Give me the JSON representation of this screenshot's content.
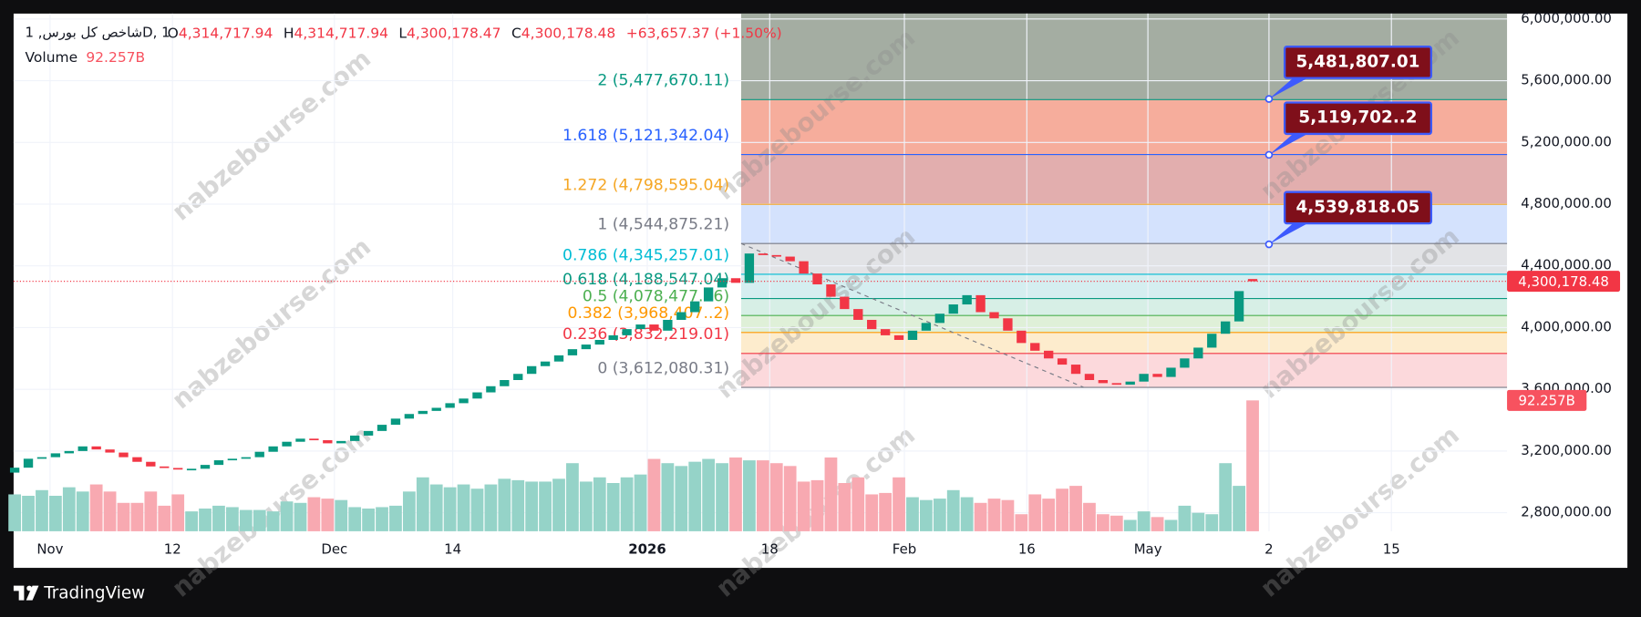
{
  "chart_data": {
    "type": "candlestick",
    "legend": {
      "symbol": "شاخص کل بورس, 1D, 1",
      "ohlc": [
        {
          "key": "O",
          "value": "4,314,717.94"
        },
        {
          "key": "H",
          "value": "4,314,717.94"
        },
        {
          "key": "L",
          "value": "4,300,178.47"
        },
        {
          "key": "C",
          "value": "4,300,178.48"
        }
      ],
      "change": "+63,657.37 (+1.50%)",
      "volume_title": "Volume",
      "volume_value": "92.257B"
    },
    "open": [
      3060000,
      3092000,
      3150000,
      3160000,
      3185000,
      3200000,
      3230000,
      3210000,
      3190000,
      3160000,
      3130000,
      3100000,
      3090000,
      3080000,
      3085000,
      3110000,
      3140000,
      3150000,
      3160000,
      3195000,
      3230000,
      3260000,
      3280000,
      3270000,
      3250000,
      3265000,
      3300000,
      3330000,
      3370000,
      3410000,
      3440000,
      3460000,
      3480000,
      3510000,
      3540000,
      3580000,
      3620000,
      3660000,
      3700000,
      3750000,
      3780000,
      3820000,
      3860000,
      3890000,
      3920000,
      3950000,
      3990000,
      4020000,
      3980000,
      4050000,
      4100000,
      4170000,
      4260000,
      4320000,
      4290000,
      4480000,
      4470000,
      4460000,
      4430000,
      4350000,
      4280000,
      4200000,
      4120000,
      4050000,
      3990000,
      3950000,
      3920000,
      3980000,
      4030000,
      4090000,
      4150000,
      4210000,
      4100000,
      4060000,
      3980000,
      3900000,
      3850000,
      3800000,
      3760000,
      3700000,
      3660000,
      3640000,
      3630000,
      3650000,
      3700000,
      3680000,
      3740000,
      3800000,
      3870000,
      3960000,
      4040000,
      4314717.94
    ],
    "close": [
      3092000,
      3150000,
      3160000,
      3185000,
      3200000,
      3230000,
      3210000,
      3190000,
      3160000,
      3130000,
      3100000,
      3090000,
      3080000,
      3085000,
      3110000,
      3140000,
      3150000,
      3160000,
      3195000,
      3230000,
      3260000,
      3280000,
      3270000,
      3250000,
      3265000,
      3300000,
      3330000,
      3370000,
      3410000,
      3440000,
      3460000,
      3480000,
      3510000,
      3540000,
      3580000,
      3620000,
      3660000,
      3700000,
      3750000,
      3780000,
      3820000,
      3860000,
      3890000,
      3920000,
      3950000,
      3990000,
      4020000,
      3980000,
      4050000,
      4100000,
      4170000,
      4260000,
      4320000,
      4290000,
      4480000,
      4470000,
      4460000,
      4430000,
      4350000,
      4280000,
      4200000,
      4120000,
      4050000,
      3990000,
      3950000,
      3920000,
      3980000,
      4030000,
      4090000,
      4150000,
      4210000,
      4100000,
      4060000,
      3980000,
      3900000,
      3850000,
      3800000,
      3760000,
      3700000,
      3660000,
      3640000,
      3630000,
      3650000,
      3700000,
      3680000,
      3740000,
      3800000,
      3870000,
      3960000,
      4040000,
      4236521.11,
      4300178.48
    ],
    "volume": {
      "axis": "y2",
      "values": [
        26,
        25,
        29,
        25,
        31,
        28,
        33,
        28,
        20,
        20,
        28,
        18,
        26,
        14,
        16,
        18,
        17,
        15,
        15,
        14,
        21,
        20,
        24,
        23,
        22,
        17,
        16,
        17,
        18,
        28,
        38,
        33,
        31,
        33,
        30,
        33,
        37,
        36,
        35,
        35,
        37,
        48,
        35,
        38,
        34,
        38,
        40,
        51,
        48,
        46,
        49,
        51,
        48,
        52,
        50,
        50,
        48,
        46,
        35,
        36,
        52,
        34,
        38,
        26,
        27,
        38,
        24,
        22,
        23,
        29,
        24,
        20,
        23,
        22,
        12,
        26,
        23,
        30,
        32,
        20,
        12,
        11,
        8,
        14,
        10,
        8,
        18,
        13,
        12,
        48,
        32,
        92.257
      ]
    },
    "up_color": "#089981",
    "down_color": "#f23645",
    "volume_up_color": "#95d3c8",
    "volume_down_color": "#f8a9b1",
    "xlim": [
      -0.08,
      109.7
    ],
    "ylim": [
      2680000,
      6035000
    ],
    "y2lim": [
      0,
      365
    ],
    "yticks": [
      {
        "value": 2800000,
        "label": "2,800,000.00"
      },
      {
        "value": 3200000,
        "label": "3,200,000.00"
      },
      {
        "value": 3600000,
        "label": "3,600,000.00"
      },
      {
        "value": 4000000,
        "label": "4,000,000.00"
      },
      {
        "value": 4400000,
        "label": "4,400,000.00"
      },
      {
        "value": 4800000,
        "label": "4,800,000.00"
      },
      {
        "value": 5200000,
        "label": "5,200,000.00"
      },
      {
        "value": 5600000,
        "label": "5,600,000.00"
      },
      {
        "value": 6000000,
        "label": "6,000,000.00"
      }
    ],
    "xticks": [
      {
        "value": 2.6,
        "label": "Nov"
      },
      {
        "value": 11.6,
        "label": "12"
      },
      {
        "value": 23.5,
        "label": "Dec"
      },
      {
        "value": 32.2,
        "label": "14"
      },
      {
        "value": 46.5,
        "label": "2026"
      },
      {
        "value": 55.5,
        "label": "18"
      },
      {
        "value": 65.4,
        "label": "Feb"
      },
      {
        "value": 74.4,
        "label": "16"
      },
      {
        "value": 83.3,
        "label": "May"
      },
      {
        "value": 92.2,
        "label": "2"
      },
      {
        "value": 101.2,
        "label": "15"
      }
    ],
    "grid": true,
    "fib_x": 53.4,
    "fib_levels": [
      {
        "label": "0 (3,612,080.31)",
        "value": 3612080.31,
        "color": "#787b86",
        "fill": "#fcd9dc"
      },
      {
        "label": "0.236 (3,832,219.01)",
        "value": 3832219.01,
        "color": "#f23645",
        "fill": "#fdeccd"
      },
      {
        "label": "0.382 (3,968,407..2)",
        "value": 3968407.2,
        "color": "#ff9800",
        "fill": "#dff0d8"
      },
      {
        "label": "0.5 (4,078,477.76)",
        "value": 4078477.76,
        "color": "#4caf50",
        "fill": "#d7efe6"
      },
      {
        "label": "0.618 (4,188,547.04)",
        "value": 4188547.04,
        "color": "#089981",
        "fill": "#d5eef0"
      },
      {
        "label": "0.786 (4,345,257.01)",
        "value": 4345257.01,
        "color": "#00bcd4",
        "fill": "#e2e3e6"
      },
      {
        "label": "1 (4,544,875.21)",
        "value": 4544875.21,
        "color": "#787b86",
        "fill": "#d4e2fd"
      },
      {
        "label": "1.272 (4,798,595.04)",
        "value": 4798595.04,
        "color": "#f5a623",
        "fill": "#e2aeae"
      },
      {
        "label": "1.618 (5,121,342.04)",
        "value": 5121342.04,
        "color": "#2962ff",
        "fill": "#f6ad9c"
      },
      {
        "label": "2 (5,477,670.11)",
        "value": 5477670.11,
        "color": "#089981",
        "fill": "#a4ada2"
      }
    ],
    "trendline": {
      "x": [
        53.4,
        78.6
      ],
      "y": [
        4544875.21,
        3612080.31
      ],
      "color": "#787b86"
    },
    "annotations": [
      {
        "label": "5,481,807.01",
        "value": 5481807.01,
        "x": 92.2
      },
      {
        "label": "5,119,702..2",
        "value": 5119702.2,
        "x": 92.2
      },
      {
        "label": "4,539,818.05",
        "value": 4539818.05,
        "x": 92.2
      }
    ],
    "watermark": "nabzebourse.com",
    "brand": "TradingView"
  }
}
